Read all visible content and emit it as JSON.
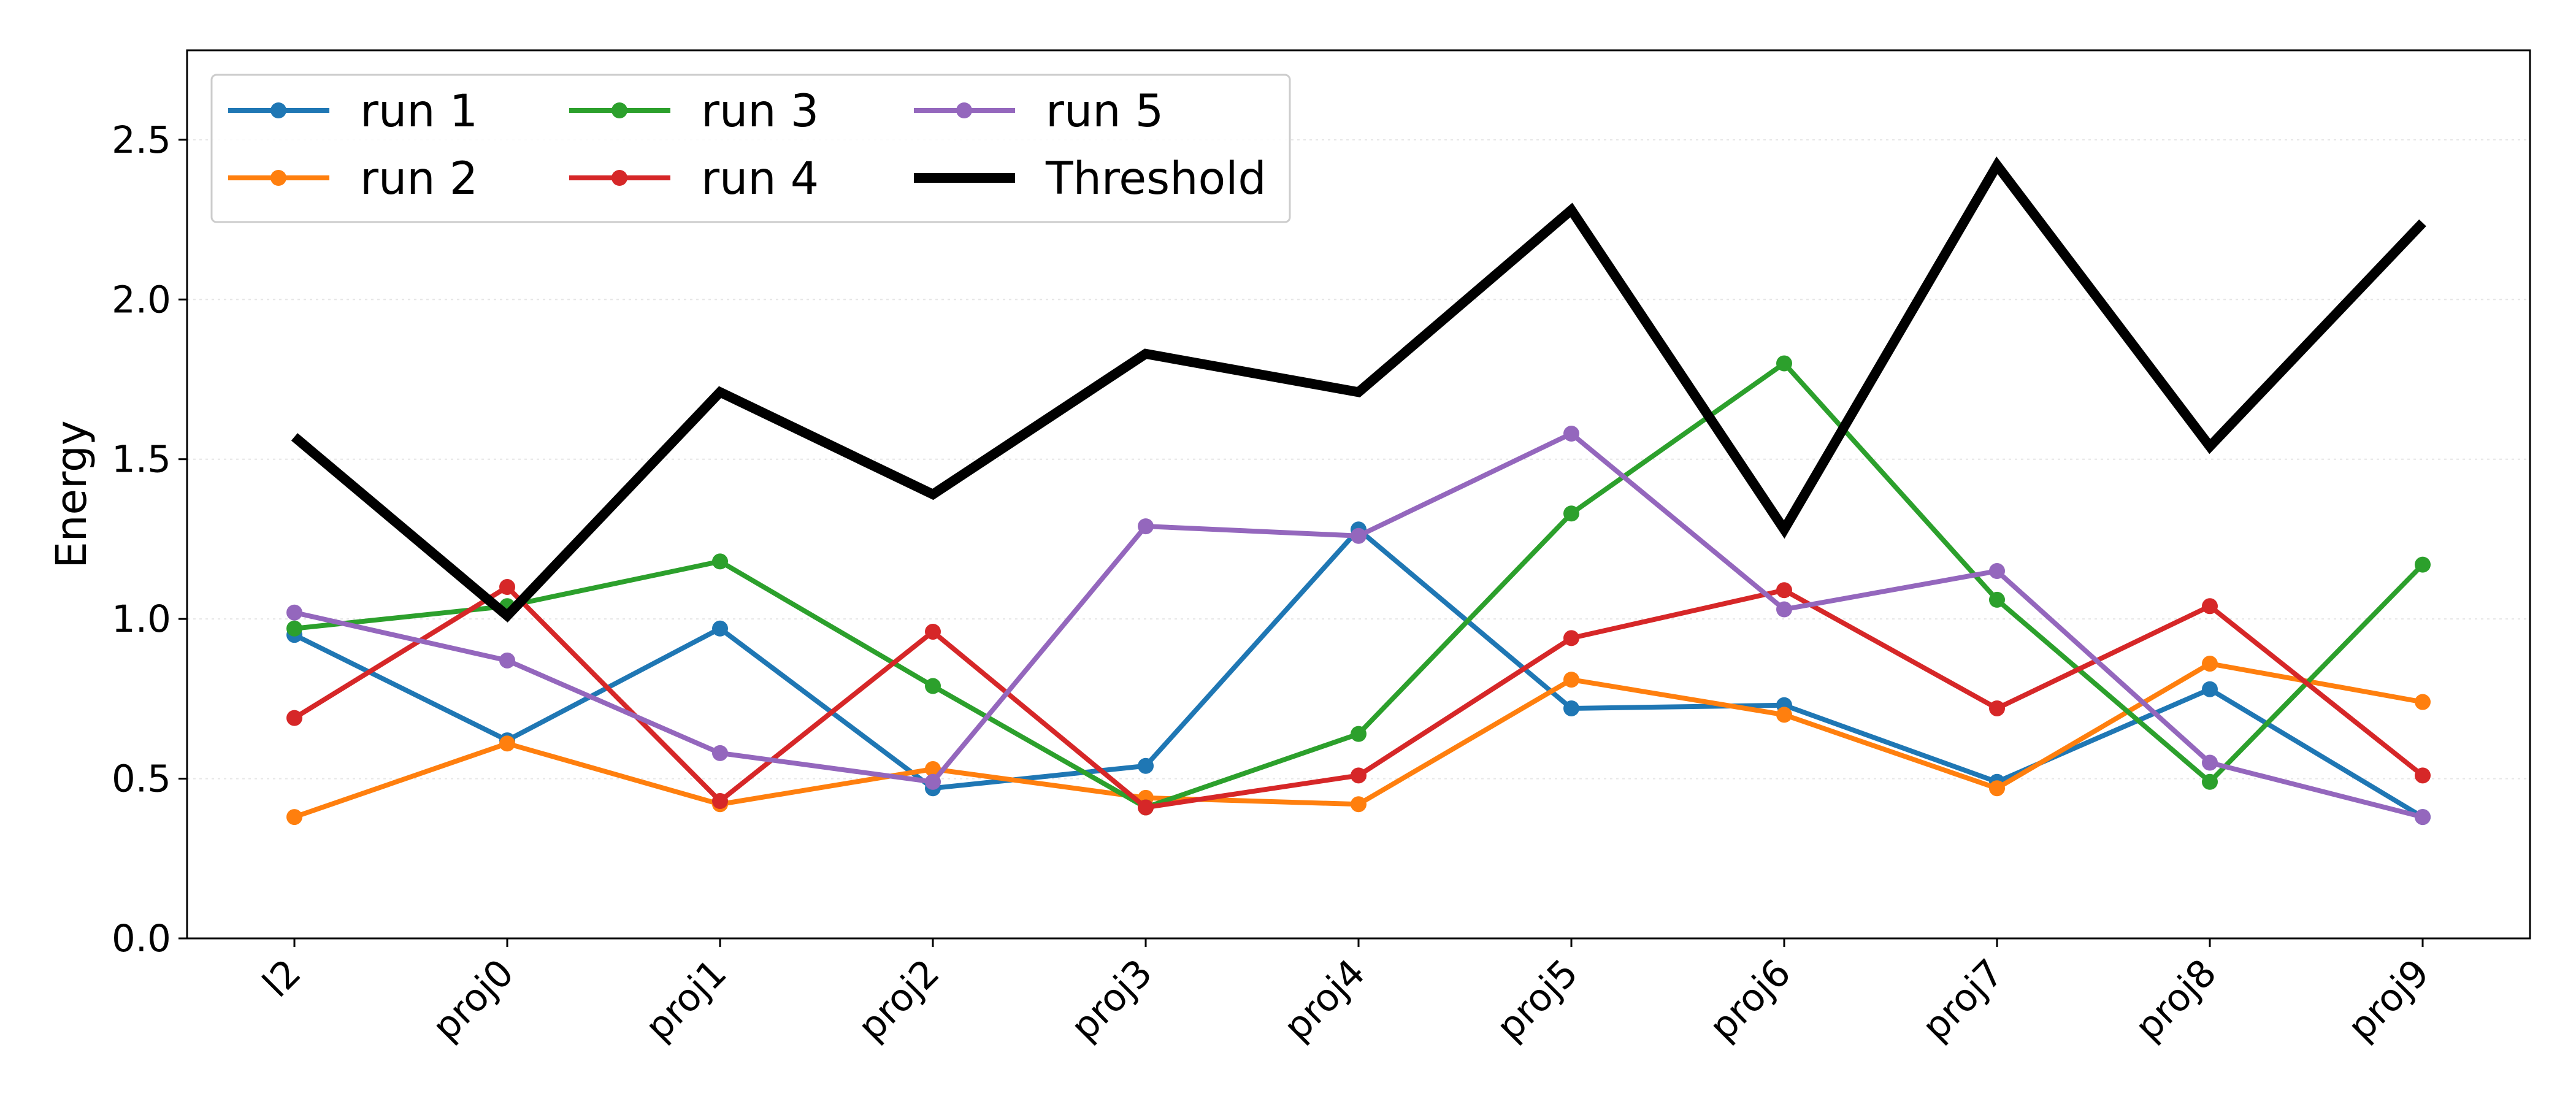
{
  "chart_data": {
    "type": "line",
    "categories": [
      "l2",
      "proj0",
      "proj1",
      "proj2",
      "proj3",
      "proj4",
      "proj5",
      "proj6",
      "proj7",
      "proj8",
      "proj9"
    ],
    "series": [
      {
        "name": "run 1",
        "color": "#1f77b4",
        "marker": "circle",
        "values": [
          0.95,
          0.62,
          0.97,
          0.47,
          0.54,
          1.28,
          0.72,
          0.73,
          0.49,
          0.78,
          0.38
        ]
      },
      {
        "name": "run 2",
        "color": "#ff7f0e",
        "marker": "circle",
        "values": [
          0.38,
          0.61,
          0.42,
          0.53,
          0.44,
          0.42,
          0.81,
          0.7,
          0.47,
          0.86,
          0.74
        ]
      },
      {
        "name": "run 3",
        "color": "#2ca02c",
        "marker": "circle",
        "values": [
          0.97,
          1.04,
          1.18,
          0.79,
          0.41,
          0.64,
          1.33,
          1.8,
          1.06,
          0.49,
          1.17
        ]
      },
      {
        "name": "run 4",
        "color": "#d62728",
        "marker": "circle",
        "values": [
          0.69,
          1.1,
          0.43,
          0.96,
          0.41,
          0.51,
          0.94,
          1.09,
          0.72,
          1.04,
          0.51
        ]
      },
      {
        "name": "run 5",
        "color": "#9467bd",
        "marker": "circle",
        "values": [
          1.02,
          0.87,
          0.58,
          0.49,
          1.29,
          1.26,
          1.58,
          1.03,
          1.15,
          0.55,
          0.38
        ]
      },
      {
        "name": "Threshold",
        "color": "#000000",
        "marker": "none",
        "linewidth": "thick",
        "values": [
          1.57,
          1.01,
          1.71,
          1.39,
          1.83,
          1.71,
          2.28,
          1.28,
          2.42,
          1.54,
          2.24
        ]
      }
    ],
    "title": "",
    "xlabel": "",
    "ylabel": "Energy",
    "ylim": [
      0,
      2.78
    ],
    "yticks": [
      "0.0",
      "0.5",
      "1.0",
      "1.5",
      "2.0",
      "2.5"
    ],
    "ytick_values": [
      0,
      0.5,
      1.0,
      1.5,
      2.0,
      2.5
    ],
    "grid": "horizontal-dotted",
    "legend": {
      "placement": "top-left",
      "columns": 3
    }
  }
}
